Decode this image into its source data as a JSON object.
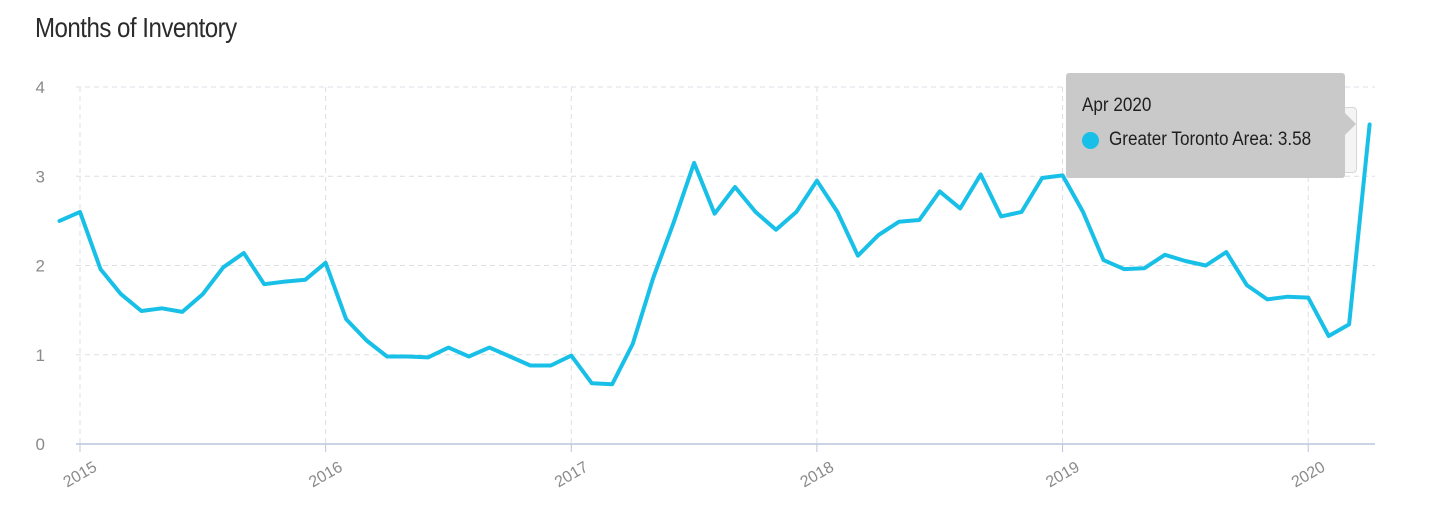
{
  "chart_data": {
    "type": "line",
    "title": "Months of Inventory",
    "xlabel": "",
    "ylabel": "",
    "ylim": [
      0,
      4
    ],
    "yticks": [
      0,
      1,
      2,
      3,
      4
    ],
    "xlim": [
      "2014-12",
      "2020-04"
    ],
    "xticks": [
      "2015",
      "2016",
      "2017",
      "2018",
      "2019",
      "2020"
    ],
    "grid": true,
    "series": [
      {
        "name": "Greater Toronto Area",
        "color": "#18c0e8",
        "x": [
          "2014-12",
          "2015-01",
          "2015-02",
          "2015-03",
          "2015-04",
          "2015-05",
          "2015-06",
          "2015-07",
          "2015-08",
          "2015-09",
          "2015-10",
          "2015-11",
          "2015-12",
          "2016-01",
          "2016-02",
          "2016-03",
          "2016-04",
          "2016-05",
          "2016-06",
          "2016-07",
          "2016-08",
          "2016-09",
          "2016-10",
          "2016-11",
          "2016-12",
          "2017-01",
          "2017-02",
          "2017-03",
          "2017-04",
          "2017-05",
          "2017-06",
          "2017-07",
          "2017-08",
          "2017-09",
          "2017-10",
          "2017-11",
          "2017-12",
          "2018-01",
          "2018-02",
          "2018-03",
          "2018-04",
          "2018-05",
          "2018-06",
          "2018-07",
          "2018-08",
          "2018-09",
          "2018-10",
          "2018-11",
          "2018-12",
          "2019-01",
          "2019-02",
          "2019-03",
          "2019-04",
          "2019-05",
          "2019-06",
          "2019-07",
          "2019-08",
          "2019-09",
          "2019-10",
          "2019-11",
          "2019-12",
          "2020-01",
          "2020-02",
          "2020-03",
          "2020-04"
        ],
        "values": [
          2.5,
          2.6,
          1.96,
          1.68,
          1.49,
          1.52,
          1.48,
          1.68,
          1.98,
          2.14,
          1.79,
          1.82,
          1.84,
          2.03,
          1.4,
          1.16,
          0.98,
          0.98,
          0.97,
          1.08,
          0.98,
          1.08,
          0.98,
          0.88,
          0.88,
          0.99,
          0.68,
          0.67,
          1.12,
          1.86,
          2.48,
          3.15,
          2.58,
          2.88,
          2.6,
          2.4,
          2.6,
          2.95,
          2.6,
          2.11,
          2.34,
          2.49,
          2.51,
          2.83,
          2.64,
          3.02,
          2.55,
          2.6,
          2.98,
          3.01,
          2.6,
          2.06,
          1.96,
          1.97,
          2.12,
          2.05,
          2.0,
          2.15,
          1.78,
          1.62,
          1.65,
          1.64,
          1.21,
          1.34,
          3.58
        ]
      }
    ],
    "tooltip": {
      "title": "Apr 2020",
      "text": "Greater Toronto Area: 3.58"
    }
  }
}
